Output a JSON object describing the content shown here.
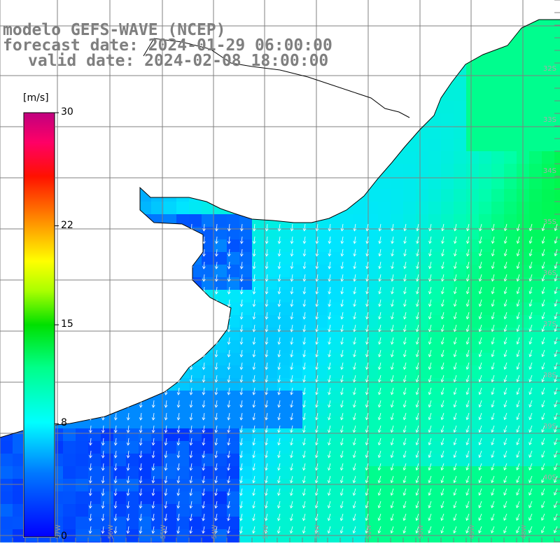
{
  "title": {
    "line1": "modelo GEFS-WAVE (NCEP)",
    "line2": "forecast date: 2024-01-29 06:00:00",
    "line3": "valid date: 2024-02-08 18:00:00"
  },
  "colorbar": {
    "unit": "[m/s]",
    "ticks": [
      {
        "label": "30",
        "value": 30
      },
      {
        "label": "22",
        "value": 22
      },
      {
        "label": "15",
        "value": 15
      },
      {
        "label": "8",
        "value": 8
      },
      {
        "label": "0",
        "value": 0
      }
    ],
    "vmin": 0,
    "vmax": 30,
    "colors": [
      "#0000ff",
      "#00aaff",
      "#00ffff",
      "#00ff66",
      "#00ee00",
      "#88ee00",
      "#ffff00",
      "#ffaa00",
      "#ff5500",
      "#ff0000",
      "#ff0088",
      "#cc0088"
    ]
  },
  "lat_labels": [
    "32S",
    "33S",
    "34S",
    "35S",
    "36S",
    "37S",
    "38S",
    "39S",
    "40S"
  ],
  "lon_labels": [
    "57W",
    "56W",
    "55W",
    "54W",
    "53W",
    "52W",
    "51W",
    "50W",
    "49W",
    "48W"
  ],
  "colors": {
    "land": "#ffffff",
    "grid": "#808080",
    "coast": "#000000",
    "arrow": "#ffffff"
  }
}
